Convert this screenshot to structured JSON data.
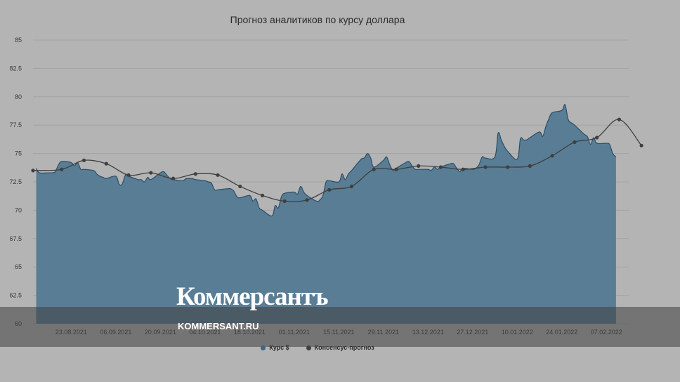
{
  "chart_data": {
    "type": "area",
    "title": "Прогноз аналитиков по курсу доллара",
    "ylim": [
      60,
      85
    ],
    "y_ticks": [
      "85",
      "82.5",
      "80",
      "77.5",
      "75",
      "72.5",
      "70",
      "67.5",
      "65",
      "62.5",
      "60"
    ],
    "x_range": [
      "2021-08-11",
      "2022-02-14"
    ],
    "x_ticks": [
      "23.08.2021",
      "06.09.2021",
      "20.09.2021",
      "04.10.2021",
      "18.10.2021",
      "01.11.2021",
      "15.11.2021",
      "29.11.2021",
      "13.12.2021",
      "27.12.2021",
      "10.01.2022",
      "24.01.2022",
      "07.02.2022"
    ],
    "x_tick_dates": [
      "2021-08-23",
      "2021-09-06",
      "2021-09-20",
      "2021-10-04",
      "2021-10-18",
      "2021-11-01",
      "2021-11-15",
      "2021-11-29",
      "2021-12-13",
      "2021-12-27",
      "2022-01-10",
      "2022-01-24",
      "2022-02-07"
    ],
    "grid": true,
    "legend_position": "bottom",
    "series": [
      {
        "name": "Курс $",
        "color": "#3e6585",
        "kind": "area",
        "points": [
          [
            "2021-08-12",
            73.7
          ],
          [
            "2021-08-13",
            73.3
          ],
          [
            "2021-08-16",
            73.3
          ],
          [
            "2021-08-17",
            73.3
          ],
          [
            "2021-08-18",
            73.4
          ],
          [
            "2021-08-19",
            74.0
          ],
          [
            "2021-08-20",
            74.3
          ],
          [
            "2021-08-23",
            74.2
          ],
          [
            "2021-08-24",
            73.9
          ],
          [
            "2021-08-25",
            74.2
          ],
          [
            "2021-08-26",
            73.6
          ],
          [
            "2021-08-27",
            73.6
          ],
          [
            "2021-08-30",
            73.5
          ],
          [
            "2021-08-31",
            73.2
          ],
          [
            "2021-09-01",
            73.0
          ],
          [
            "2021-09-02",
            72.9
          ],
          [
            "2021-09-03",
            72.8
          ],
          [
            "2021-09-06",
            73.0
          ],
          [
            "2021-09-07",
            72.3
          ],
          [
            "2021-09-08",
            72.3
          ],
          [
            "2021-09-09",
            73.1
          ],
          [
            "2021-09-10",
            73.0
          ],
          [
            "2021-09-13",
            72.7
          ],
          [
            "2021-09-14",
            72.7
          ],
          [
            "2021-09-15",
            72.5
          ],
          [
            "2021-09-16",
            72.9
          ],
          [
            "2021-09-17",
            72.7
          ],
          [
            "2021-09-20",
            73.3
          ],
          [
            "2021-09-21",
            73.4
          ],
          [
            "2021-09-22",
            73.1
          ],
          [
            "2021-09-23",
            72.8
          ],
          [
            "2021-09-24",
            72.7
          ],
          [
            "2021-09-27",
            72.6
          ],
          [
            "2021-09-28",
            72.8
          ],
          [
            "2021-09-29",
            72.8
          ],
          [
            "2021-09-30",
            72.8
          ],
          [
            "2021-10-01",
            72.7
          ],
          [
            "2021-10-04",
            72.6
          ],
          [
            "2021-10-05",
            72.5
          ],
          [
            "2021-10-06",
            72.4
          ],
          [
            "2021-10-07",
            71.8
          ],
          [
            "2021-10-08",
            71.8
          ],
          [
            "2021-10-11",
            71.9
          ],
          [
            "2021-10-12",
            71.9
          ],
          [
            "2021-10-13",
            71.7
          ],
          [
            "2021-10-14",
            71.2
          ],
          [
            "2021-10-15",
            71.1
          ],
          [
            "2021-10-18",
            71.3
          ],
          [
            "2021-10-19",
            70.8
          ],
          [
            "2021-10-20",
            71.0
          ],
          [
            "2021-10-21",
            70.2
          ],
          [
            "2021-10-22",
            70.0
          ],
          [
            "2021-10-25",
            69.5
          ],
          [
            "2021-10-26",
            70.4
          ],
          [
            "2021-10-27",
            70.2
          ],
          [
            "2021-10-28",
            71.2
          ],
          [
            "2021-10-29",
            71.5
          ],
          [
            "2021-11-01",
            71.6
          ],
          [
            "2021-11-02",
            71.4
          ],
          [
            "2021-11-03",
            72.1
          ],
          [
            "2021-11-04",
            71.6
          ],
          [
            "2021-11-05",
            71.3
          ],
          [
            "2021-11-08",
            70.8
          ],
          [
            "2021-11-09",
            70.9
          ],
          [
            "2021-11-10",
            71.3
          ],
          [
            "2021-11-11",
            72.5
          ],
          [
            "2021-11-12",
            72.6
          ],
          [
            "2021-11-15",
            72.5
          ],
          [
            "2021-11-16",
            73.2
          ],
          [
            "2021-11-17",
            72.7
          ],
          [
            "2021-11-18",
            73.2
          ],
          [
            "2021-11-19",
            73.5
          ],
          [
            "2021-11-22",
            74.5
          ],
          [
            "2021-11-23",
            74.6
          ],
          [
            "2021-11-24",
            75.0
          ],
          [
            "2021-11-25",
            74.6
          ],
          [
            "2021-11-26",
            73.8
          ],
          [
            "2021-11-29",
            74.4
          ],
          [
            "2021-11-30",
            74.7
          ],
          [
            "2021-12-01",
            74.0
          ],
          [
            "2021-12-02",
            73.5
          ],
          [
            "2021-12-03",
            73.7
          ],
          [
            "2021-12-06",
            74.2
          ],
          [
            "2021-12-07",
            74.3
          ],
          [
            "2021-12-08",
            73.9
          ],
          [
            "2021-12-09",
            73.6
          ],
          [
            "2021-12-10",
            73.6
          ],
          [
            "2021-12-13",
            73.6
          ],
          [
            "2021-12-14",
            73.5
          ],
          [
            "2021-12-15",
            73.8
          ],
          [
            "2021-12-16",
            73.6
          ],
          [
            "2021-12-17",
            73.8
          ],
          [
            "2021-12-20",
            74.1
          ],
          [
            "2021-12-21",
            74.1
          ],
          [
            "2021-12-22",
            73.7
          ],
          [
            "2021-12-23",
            73.4
          ],
          [
            "2021-12-24",
            73.7
          ],
          [
            "2021-12-27",
            73.6
          ],
          [
            "2021-12-28",
            73.7
          ],
          [
            "2021-12-29",
            74.0
          ],
          [
            "2021-12-30",
            74.7
          ],
          [
            "2021-12-31",
            74.6
          ],
          [
            "2022-01-03",
            74.7
          ],
          [
            "2022-01-04",
            76.8
          ],
          [
            "2022-01-05",
            76.2
          ],
          [
            "2022-01-06",
            75.6
          ],
          [
            "2022-01-07",
            75.2
          ],
          [
            "2022-01-10",
            74.5
          ],
          [
            "2022-01-11",
            76.3
          ],
          [
            "2022-01-12",
            76.2
          ],
          [
            "2022-01-13",
            76.2
          ],
          [
            "2022-01-14",
            76.4
          ],
          [
            "2022-01-17",
            76.9
          ],
          [
            "2022-01-18",
            76.5
          ],
          [
            "2022-01-19",
            77.4
          ],
          [
            "2022-01-20",
            78.1
          ],
          [
            "2022-01-21",
            78.6
          ],
          [
            "2022-01-24",
            78.8
          ],
          [
            "2022-01-25",
            79.3
          ],
          [
            "2022-01-26",
            78.0
          ],
          [
            "2022-01-27",
            77.7
          ],
          [
            "2022-01-28",
            77.5
          ],
          [
            "2022-01-31",
            76.7
          ],
          [
            "2022-02-01",
            76.5
          ],
          [
            "2022-02-02",
            75.8
          ],
          [
            "2022-02-03",
            76.4
          ],
          [
            "2022-02-04",
            75.9
          ],
          [
            "2022-02-07",
            75.9
          ],
          [
            "2022-02-08",
            75.8
          ],
          [
            "2022-02-09",
            75.0
          ],
          [
            "2022-02-10",
            74.7
          ]
        ]
      },
      {
        "name": "Консенсус-прогноз",
        "color": "#3f3f3f",
        "kind": "line",
        "points": [
          [
            "2021-08-11",
            73.5
          ],
          [
            "2021-08-20",
            73.6
          ],
          [
            "2021-08-27",
            74.4
          ],
          [
            "2021-09-03",
            74.1
          ],
          [
            "2021-09-10",
            73.1
          ],
          [
            "2021-09-17",
            73.3
          ],
          [
            "2021-09-24",
            72.8
          ],
          [
            "2021-10-01",
            73.2
          ],
          [
            "2021-10-08",
            73.1
          ],
          [
            "2021-10-15",
            72.1
          ],
          [
            "2021-10-22",
            71.3
          ],
          [
            "2021-10-29",
            70.8
          ],
          [
            "2021-11-05",
            70.9
          ],
          [
            "2021-11-12",
            71.8
          ],
          [
            "2021-11-19",
            72.1
          ],
          [
            "2021-11-26",
            73.6
          ],
          [
            "2021-12-03",
            73.6
          ],
          [
            "2021-12-10",
            73.9
          ],
          [
            "2021-12-17",
            73.8
          ],
          [
            "2021-12-24",
            73.6
          ],
          [
            "2021-12-31",
            73.8
          ],
          [
            "2022-01-07",
            73.8
          ],
          [
            "2022-01-14",
            73.9
          ],
          [
            "2022-01-21",
            74.8
          ],
          [
            "2022-01-28",
            76.0
          ],
          [
            "2022-02-04",
            76.4
          ],
          [
            "2022-02-11",
            78.0
          ],
          [
            "2022-02-18",
            75.7
          ]
        ]
      }
    ]
  },
  "branding": {
    "logo": "Коммерсантъ",
    "site": "KOMMERSANT.RU"
  }
}
